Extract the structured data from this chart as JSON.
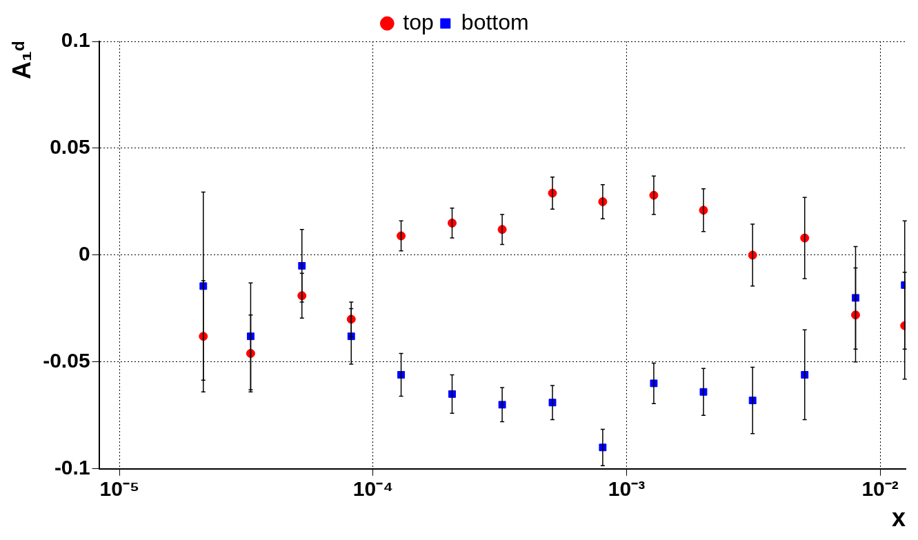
{
  "chart_data": {
    "type": "scatter",
    "xlabel": "x",
    "ylabel": "A₁ᵈ",
    "log": "x",
    "grid": true,
    "legend": "top",
    "x": [
      2.14e-05,
      3.29e-05,
      5.24e-05,
      8.2e-05,
      0.000129,
      0.000205,
      0.000323,
      0.00051,
      0.000805,
      0.00128,
      0.00201,
      0.00314,
      0.00504,
      0.008,
      0.0125
    ],
    "xlim": [
      8.3e-06,
      0.0126
    ],
    "xticks": [
      {
        "value": 1e-05,
        "label": "10⁻⁵"
      },
      {
        "value": 0.0001,
        "label": "10⁻⁴"
      },
      {
        "value": 0.001,
        "label": "10⁻³"
      },
      {
        "value": 0.01,
        "label": "10⁻²"
      }
    ],
    "ylim": [
      -0.1,
      0.1
    ],
    "yticks": [
      -0.1,
      -0.05,
      0,
      0.05,
      0.1
    ],
    "series": [
      {
        "name": "top",
        "color": "#ff0000",
        "marker": "circle",
        "values": [
          -0.038,
          -0.046,
          -0.019,
          -0.03,
          0.009,
          0.015,
          0.012,
          0.029,
          0.025,
          0.028,
          0.021,
          0.0,
          0.008,
          -0.028,
          -0.033
        ],
        "errors": [
          0.026,
          0.018,
          0.0105,
          0.008,
          0.007,
          0.007,
          0.007,
          0.0075,
          0.008,
          0.009,
          0.01,
          0.0145,
          0.019,
          0.022,
          0.025
        ]
      },
      {
        "name": "bottom",
        "color": "#0000ff",
        "marker": "square",
        "values": [
          -0.0145,
          -0.038,
          -0.005,
          -0.038,
          -0.056,
          -0.065,
          -0.07,
          -0.069,
          -0.09,
          -0.06,
          -0.064,
          -0.068,
          -0.056,
          -0.02,
          -0.014
        ],
        "errors": [
          0.044,
          0.025,
          0.017,
          0.013,
          0.01,
          0.009,
          0.008,
          0.008,
          0.0085,
          0.0095,
          0.011,
          0.0155,
          0.021,
          0.024,
          0.03
        ]
      }
    ]
  }
}
